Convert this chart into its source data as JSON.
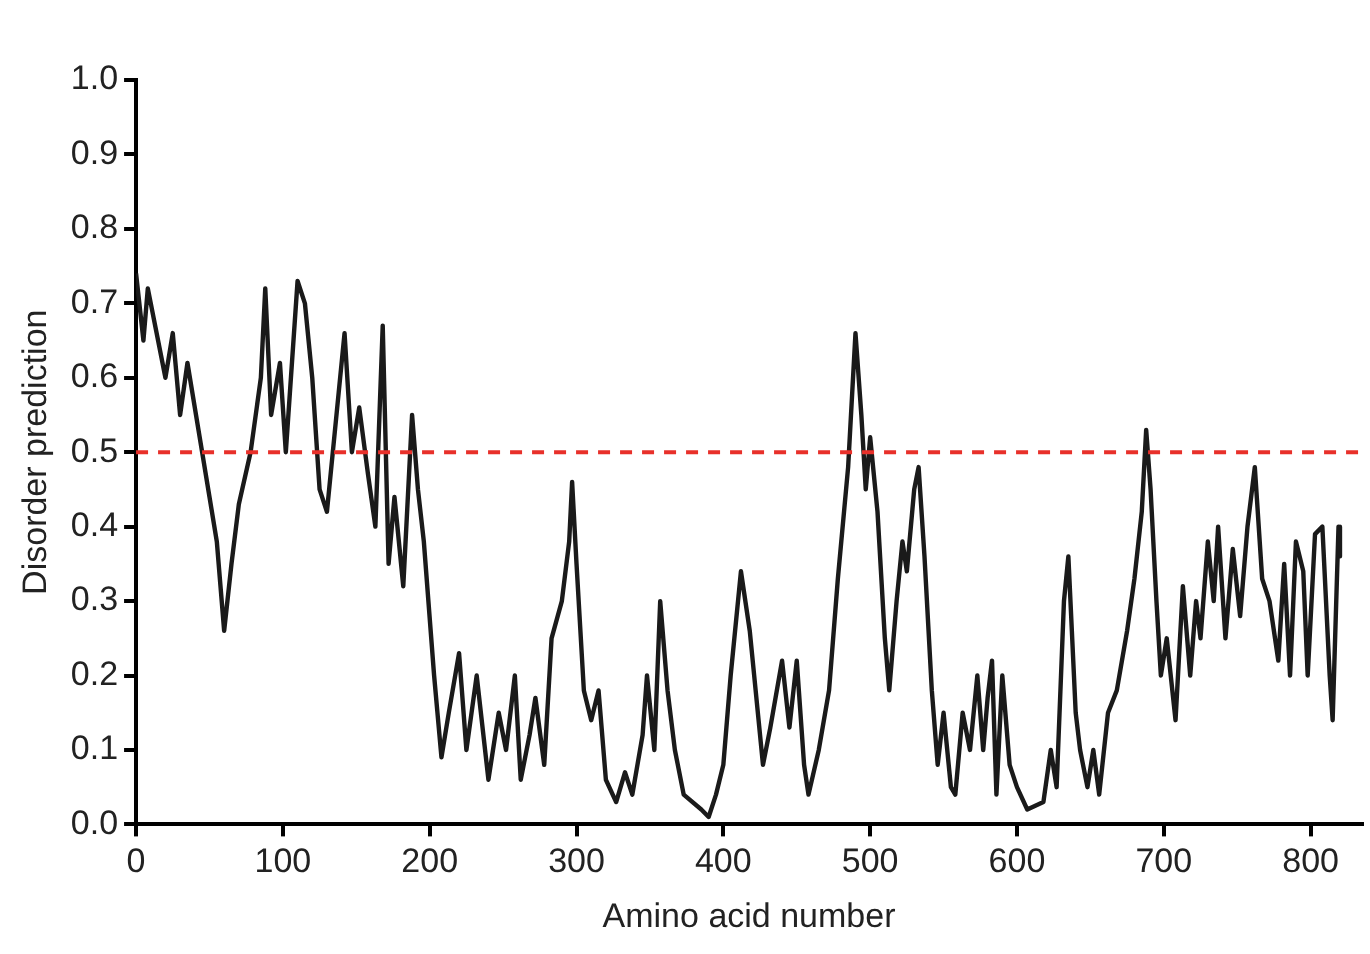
{
  "chart_data": {
    "type": "line",
    "xlabel": "Amino acid number",
    "ylabel": "Disorder prediction",
    "xlim": [
      0,
      835
    ],
    "xticks": [
      0,
      100,
      200,
      300,
      400,
      500,
      600,
      700,
      800
    ],
    "ylim": [
      0,
      1
    ],
    "yticks": [
      {
        "value": 0,
        "label": "0.0"
      },
      {
        "value": 0.1,
        "label": "0.1"
      },
      {
        "value": 0.2,
        "label": "0.2"
      },
      {
        "value": 0.3,
        "label": "0.3"
      },
      {
        "value": 0.4,
        "label": "0.4"
      },
      {
        "value": 0.5,
        "label": "0.5"
      },
      {
        "value": 0.6,
        "label": "0.6"
      },
      {
        "value": 0.7,
        "label": "0.7"
      },
      {
        "value": 0.8,
        "label": "0.8"
      },
      {
        "value": 0.9,
        "label": "0.9"
      },
      {
        "value": 1,
        "label": "1.0"
      }
    ],
    "grid": false,
    "legend": false,
    "marker": "none",
    "line_style": "solid",
    "ref_lines": [
      {
        "axis": "y",
        "value": 0.5,
        "color": "#e8302a",
        "line_style": "dashed"
      }
    ],
    "series": [
      {
        "color": "#1a1a1a",
        "x": [
          0,
          5,
          8,
          20,
          25,
          30,
          35,
          45,
          50,
          55,
          60,
          65,
          70,
          78,
          85,
          88,
          92,
          98,
          102,
          110,
          115,
          120,
          125,
          130,
          138,
          142,
          147,
          152,
          158,
          163,
          168,
          172,
          176,
          182,
          188,
          192,
          196,
          203,
          208,
          213,
          220,
          225,
          232,
          240,
          247,
          252,
          258,
          262,
          268,
          272,
          278,
          283,
          290,
          295,
          297,
          300,
          305,
          310,
          315,
          320,
          327,
          333,
          338,
          345,
          348,
          353,
          357,
          362,
          367,
          373,
          385,
          390,
          395,
          400,
          405,
          412,
          418,
          422,
          427,
          432,
          440,
          445,
          450,
          455,
          458,
          465,
          472,
          478,
          485,
          490,
          494,
          497,
          500,
          505,
          510,
          513,
          518,
          522,
          525,
          530,
          533,
          537,
          542,
          546,
          550,
          555,
          558,
          563,
          568,
          573,
          577,
          580,
          583,
          586,
          590,
          595,
          600,
          607,
          618,
          623,
          627,
          632,
          635,
          640,
          643,
          648,
          652,
          656,
          662,
          668,
          675,
          680,
          685,
          688,
          691,
          695,
          698,
          702,
          708,
          713,
          718,
          722,
          725,
          730,
          734,
          737,
          742,
          747,
          752,
          757,
          762,
          767,
          772,
          778,
          782,
          786,
          790,
          795,
          798,
          803,
          808,
          813,
          815,
          819,
          820
        ],
        "values": [
          0.74,
          0.65,
          0.72,
          0.6,
          0.66,
          0.55,
          0.62,
          0.5,
          0.44,
          0.38,
          0.26,
          0.35,
          0.43,
          0.5,
          0.6,
          0.72,
          0.55,
          0.62,
          0.5,
          0.73,
          0.7,
          0.6,
          0.45,
          0.42,
          0.58,
          0.66,
          0.5,
          0.56,
          0.47,
          0.4,
          0.67,
          0.35,
          0.44,
          0.32,
          0.55,
          0.45,
          0.38,
          0.2,
          0.09,
          0.15,
          0.23,
          0.1,
          0.2,
          0.06,
          0.15,
          0.1,
          0.2,
          0.06,
          0.12,
          0.17,
          0.08,
          0.25,
          0.3,
          0.38,
          0.46,
          0.35,
          0.18,
          0.14,
          0.18,
          0.06,
          0.03,
          0.07,
          0.04,
          0.12,
          0.2,
          0.1,
          0.3,
          0.18,
          0.1,
          0.04,
          0.02,
          0.01,
          0.04,
          0.08,
          0.2,
          0.34,
          0.26,
          0.18,
          0.08,
          0.13,
          0.22,
          0.13,
          0.22,
          0.08,
          0.04,
          0.1,
          0.18,
          0.33,
          0.48,
          0.66,
          0.55,
          0.45,
          0.52,
          0.42,
          0.25,
          0.18,
          0.3,
          0.38,
          0.34,
          0.45,
          0.48,
          0.36,
          0.18,
          0.08,
          0.15,
          0.05,
          0.04,
          0.15,
          0.1,
          0.2,
          0.1,
          0.17,
          0.22,
          0.04,
          0.2,
          0.08,
          0.05,
          0.02,
          0.03,
          0.1,
          0.05,
          0.3,
          0.36,
          0.15,
          0.1,
          0.05,
          0.1,
          0.04,
          0.15,
          0.18,
          0.26,
          0.33,
          0.42,
          0.53,
          0.45,
          0.3,
          0.2,
          0.25,
          0.14,
          0.32,
          0.2,
          0.3,
          0.25,
          0.38,
          0.3,
          0.4,
          0.25,
          0.37,
          0.28,
          0.4,
          0.48,
          0.33,
          0.3,
          0.22,
          0.35,
          0.2,
          0.38,
          0.34,
          0.2,
          0.39,
          0.4,
          0.2,
          0.14,
          0.4,
          0.36
        ]
      }
    ]
  }
}
